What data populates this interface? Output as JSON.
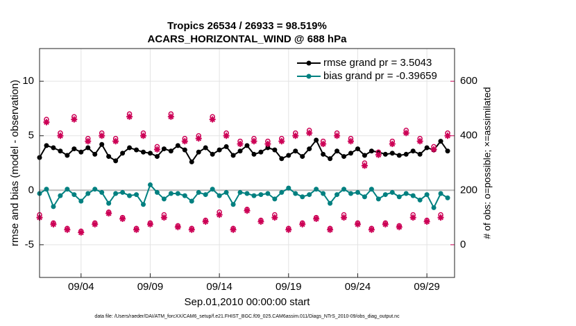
{
  "chart_data": {
    "type": "line",
    "title": "Tropics 26534 / 26933 = 98.519%",
    "subtitle": "ACARS_HORIZONTAL_WIND @ 688 hPa",
    "xlabel": "Sep.01,2010 00:00:00 start",
    "ylabel": "rmse and bias (model - observation)",
    "y2label": "# of obs: o=possible; ×=assimilated",
    "footnote": "data file: /Users/raeder/DAI/ATM_forcXX/CAM6_setup/f.e21.FHIST_BGC.f09_025.CAM6assim.011/Diags_NTrS_2010-09/obs_diag_output.nc",
    "xlim": [
      0,
      30
    ],
    "xticks": [
      {
        "value": 3,
        "label": "09/04"
      },
      {
        "value": 8,
        "label": "09/09"
      },
      {
        "value": 13,
        "label": "09/14"
      },
      {
        "value": 18,
        "label": "09/19"
      },
      {
        "value": 23,
        "label": "09/24"
      },
      {
        "value": 28,
        "label": "09/29"
      }
    ],
    "ylim": [
      -8,
      13
    ],
    "yticks": [
      -5,
      0,
      5,
      10
    ],
    "y2lim": [
      -120,
      720
    ],
    "y2ticks": [
      0,
      200,
      400,
      600
    ],
    "y2color": "#cc0055",
    "legend_text_color": "#0044dd",
    "grid": true,
    "legend": "upper right",
    "x": [
      0,
      0.5,
      1,
      1.5,
      2,
      2.5,
      3,
      3.5,
      4,
      4.5,
      5,
      5.5,
      6,
      6.5,
      7,
      7.5,
      8,
      8.5,
      9,
      9.5,
      10,
      10.5,
      11,
      11.5,
      12,
      12.5,
      13,
      13.5,
      14,
      14.5,
      15,
      15.5,
      16,
      16.5,
      17,
      17.5,
      18,
      18.5,
      19,
      19.5,
      20,
      20.5,
      21,
      21.5,
      22,
      22.5,
      23,
      23.5,
      24,
      24.5,
      25,
      25.5,
      26,
      26.5,
      27,
      27.5,
      28,
      28.5,
      29,
      29.5
    ],
    "series": [
      {
        "name": "rmse grand pr = 3.5043",
        "color": "#000000",
        "line": true,
        "marker": "dot",
        "values": [
          3.0,
          4.1,
          3.9,
          3.6,
          3.2,
          3.8,
          3.5,
          3.9,
          3.3,
          4.2,
          3.1,
          2.7,
          3.4,
          3.9,
          3.7,
          3.5,
          3.4,
          3.1,
          3.8,
          3.6,
          4.1,
          3.7,
          2.6,
          3.5,
          3.9,
          3.3,
          3.7,
          4.0,
          3.2,
          3.6,
          4.1,
          3.3,
          3.5,
          3.9,
          3.7,
          2.9,
          3.2,
          3.6,
          3.1,
          3.8,
          4.6,
          3.3,
          2.9,
          3.6,
          3.1,
          3.4,
          3.8,
          3.2,
          3.6,
          3.5,
          3.3,
          3.4,
          3.2,
          3.3,
          3.6,
          3.3,
          3.9,
          3.7,
          4.5,
          3.6
        ]
      },
      {
        "name": "bias grand pr = -0.39659",
        "color": "#008080",
        "line": true,
        "marker": "dot",
        "values": [
          -0.3,
          0.1,
          -1.5,
          -0.5,
          0.1,
          -0.4,
          -1.0,
          -0.3,
          0.1,
          -0.2,
          -1.2,
          -0.3,
          -0.2,
          -0.5,
          -0.4,
          -1.3,
          0.5,
          -0.2,
          -0.8,
          -0.3,
          -0.3,
          -0.5,
          -1.0,
          -0.2,
          -0.4,
          0.1,
          -0.5,
          -0.2,
          -1.3,
          -0.2,
          -0.3,
          -0.5,
          -0.4,
          -0.3,
          -0.8,
          -0.2,
          0.2,
          -0.3,
          -0.6,
          -0.4,
          0.1,
          -0.3,
          -1.2,
          -0.4,
          0.1,
          -0.3,
          -0.2,
          -0.6,
          0.1,
          -0.8,
          -0.4,
          -0.2,
          -0.6,
          -0.3,
          -0.5,
          -0.9,
          -0.4,
          -1.6,
          -0.3,
          -0.7
        ]
      },
      {
        "color": "#cc0055",
        "line": false,
        "marker": "circle",
        "axis": "y2",
        "values": [
          110,
          460,
          80,
          410,
          60,
          470,
          50,
          390,
          80,
          410,
          120,
          390,
          100,
          480,
          60,
          410,
          80,
          360,
          110,
          480,
          70,
          390,
          60,
          400,
          90,
          470,
          120,
          410,
          60,
          380,
          130,
          390,
          90,
          380,
          110,
          390,
          60,
          410,
          80,
          420,
          100,
          380,
          60,
          410,
          110,
          390,
          80,
          300,
          60,
          340,
          80,
          380,
          70,
          420,
          110,
          390,
          90,
          360,
          110,
          410
        ]
      },
      {
        "color": "#cc0055",
        "line": false,
        "marker": "asterisk",
        "axis": "y2",
        "values": [
          100,
          450,
          75,
          400,
          55,
          460,
          45,
          380,
          75,
          400,
          115,
          380,
          95,
          470,
          55,
          400,
          75,
          350,
          100,
          470,
          65,
          380,
          55,
          390,
          85,
          460,
          110,
          400,
          55,
          370,
          125,
          380,
          85,
          370,
          100,
          380,
          55,
          400,
          75,
          410,
          95,
          370,
          55,
          400,
          100,
          380,
          75,
          290,
          55,
          330,
          75,
          370,
          65,
          410,
          100,
          380,
          85,
          350,
          100,
          400
        ]
      }
    ]
  }
}
